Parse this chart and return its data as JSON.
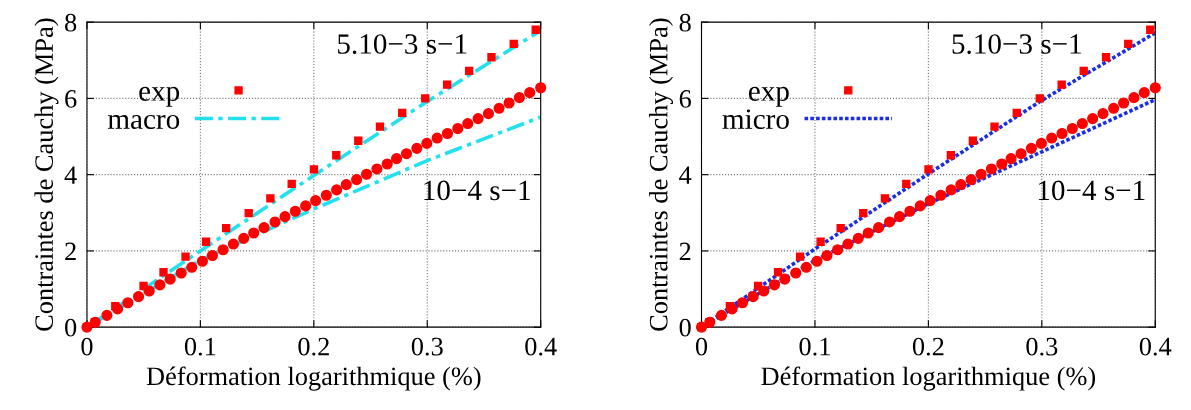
{
  "chart_data": [
    {
      "type": "scatter",
      "xlabel": "Déformation logarithmique (%)",
      "ylabel": "Contraintes de Cauchy (MPa)",
      "xlim": [
        0,
        0.4
      ],
      "ylim": [
        0,
        8
      ],
      "xticks": [
        0,
        0.1,
        0.2,
        0.3,
        0.4
      ],
      "yticks": [
        0,
        2,
        4,
        6,
        8
      ],
      "grid": true,
      "legend": "left",
      "annotations": [
        "5.10−3 s−1",
        "10−4 s−1"
      ],
      "series": [
        {
          "name": "exp",
          "marker": "square",
          "color": "#ff0000",
          "x": [
            0,
            0.007,
            0.025,
            0.0499,
            0.0675,
            0.0869,
            0.105,
            0.1227,
            0.1426,
            0.1617,
            0.1805,
            0.2001,
            0.2198,
            0.2392,
            0.2583,
            0.2779,
            0.2982,
            0.3175,
            0.3369,
            0.3566,
            0.3762,
            0.3956
          ],
          "values": [
            0,
            0.13,
            0.55,
            1.08,
            1.44,
            1.85,
            2.24,
            2.6,
            2.99,
            3.38,
            3.76,
            4.14,
            4.51,
            4.89,
            5.26,
            5.62,
            6.0,
            6.36,
            6.72,
            7.08,
            7.43,
            7.8
          ]
        },
        {
          "marker": "circle",
          "color": "#ff0000",
          "x": [
            0,
            0.0073,
            0.0176,
            0.027,
            0.0361,
            0.0455,
            0.0549,
            0.0643,
            0.0734,
            0.0831,
            0.0924,
            0.1018,
            0.1106,
            0.12,
            0.1291,
            0.1382,
            0.147,
            0.1561,
            0.1658,
            0.1746,
            0.1837,
            0.1928,
            0.2016,
            0.211,
            0.2201,
            0.2286,
            0.2377,
            0.2465,
            0.2556,
            0.2647,
            0.2729,
            0.2817,
            0.2908,
            0.2996,
            0.3087,
            0.3178,
            0.3269,
            0.3357,
            0.3448,
            0.3539,
            0.3633,
            0.3721,
            0.3812,
            0.3903,
            0.4
          ],
          "values": [
            0,
            0.13,
            0.31,
            0.48,
            0.64,
            0.8,
            0.95,
            1.11,
            1.26,
            1.42,
            1.57,
            1.73,
            1.88,
            2.03,
            2.18,
            2.33,
            2.47,
            2.61,
            2.76,
            2.9,
            3.04,
            3.18,
            3.32,
            3.46,
            3.6,
            3.74,
            3.87,
            4.01,
            4.15,
            4.28,
            4.42,
            4.55,
            4.69,
            4.82,
            4.96,
            5.08,
            5.21,
            5.34,
            5.47,
            5.6,
            5.74,
            5.88,
            6.02,
            6.15,
            6.28
          ]
        },
        {
          "name": "macro",
          "type": "line",
          "line_style": "dashed",
          "color": "#22e0ee",
          "x": [
            0,
            0.1,
            0.2,
            0.3,
            0.4
          ],
          "values": [
            0,
            2.0,
            3.98,
            5.92,
            7.78
          ]
        },
        {
          "type": "line",
          "line_style": "dashed",
          "color": "#22e0ee",
          "x": [
            0,
            0.1,
            0.2,
            0.3,
            0.4
          ],
          "values": [
            0,
            1.76,
            3.1,
            4.37,
            5.51
          ]
        }
      ]
    },
    {
      "type": "scatter",
      "xlabel": "Déformation logarithmique (%)",
      "ylabel": "Contraintes de Cauchy (MPa)",
      "xlim": [
        0,
        0.4
      ],
      "ylim": [
        0,
        8
      ],
      "xticks": [
        0,
        0.1,
        0.2,
        0.3,
        0.4
      ],
      "yticks": [
        0,
        2,
        4,
        6,
        8
      ],
      "grid": true,
      "legend": "left",
      "annotations": [
        "5.10−3 s−1",
        "10−4 s−1"
      ],
      "series": [
        {
          "name": "exp",
          "marker": "square",
          "color": "#ff0000",
          "x": [
            0,
            0.007,
            0.025,
            0.0499,
            0.0675,
            0.0869,
            0.105,
            0.1227,
            0.1426,
            0.1617,
            0.1805,
            0.2001,
            0.2198,
            0.2392,
            0.2583,
            0.2779,
            0.2982,
            0.3175,
            0.3369,
            0.3566,
            0.3762,
            0.3956
          ],
          "values": [
            0,
            0.13,
            0.55,
            1.08,
            1.44,
            1.85,
            2.24,
            2.6,
            2.99,
            3.38,
            3.76,
            4.14,
            4.51,
            4.89,
            5.26,
            5.62,
            6.0,
            6.36,
            6.72,
            7.08,
            7.43,
            7.8
          ]
        },
        {
          "marker": "circle",
          "color": "#ff0000",
          "x": [
            0,
            0.0073,
            0.0176,
            0.027,
            0.0361,
            0.0455,
            0.0549,
            0.0643,
            0.0734,
            0.0831,
            0.0924,
            0.1018,
            0.1106,
            0.12,
            0.1291,
            0.1382,
            0.147,
            0.1561,
            0.1658,
            0.1746,
            0.1837,
            0.1928,
            0.2016,
            0.211,
            0.2201,
            0.2286,
            0.2377,
            0.2465,
            0.2556,
            0.2647,
            0.2729,
            0.2817,
            0.2908,
            0.2996,
            0.3087,
            0.3178,
            0.3269,
            0.3357,
            0.3448,
            0.3539,
            0.3633,
            0.3721,
            0.3812,
            0.3903,
            0.4
          ],
          "values": [
            0,
            0.13,
            0.31,
            0.48,
            0.64,
            0.8,
            0.95,
            1.11,
            1.26,
            1.42,
            1.57,
            1.73,
            1.88,
            2.03,
            2.18,
            2.33,
            2.47,
            2.61,
            2.76,
            2.9,
            3.04,
            3.18,
            3.32,
            3.46,
            3.6,
            3.74,
            3.87,
            4.01,
            4.15,
            4.28,
            4.42,
            4.55,
            4.69,
            4.82,
            4.96,
            5.08,
            5.21,
            5.34,
            5.47,
            5.6,
            5.74,
            5.88,
            6.02,
            6.15,
            6.28
          ]
        },
        {
          "name": "micro",
          "type": "line",
          "line_style": "dotted",
          "color": "#1a2ee6",
          "x": [
            0,
            0.1,
            0.2,
            0.3,
            0.4
          ],
          "values": [
            0,
            2.05,
            4.02,
            5.95,
            7.72
          ]
        },
        {
          "type": "line",
          "line_style": "dotted",
          "color": "#1a2ee6",
          "x": [
            0,
            0.1,
            0.2,
            0.3,
            0.4
          ],
          "values": [
            0,
            1.75,
            3.24,
            4.6,
            5.97
          ]
        }
      ]
    }
  ]
}
